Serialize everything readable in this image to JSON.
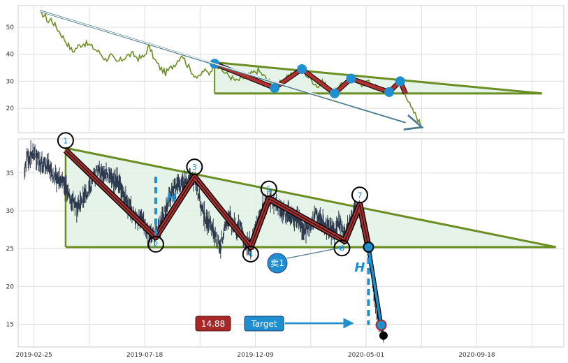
{
  "chart_data": [
    {
      "type": "line",
      "panel": "overview",
      "ylim": [
        11,
        58
      ],
      "y_ticks": [
        20,
        30,
        40,
        50
      ],
      "x_range": [
        0,
        100
      ],
      "colors": {
        "price": "#6b8e23",
        "pattern": "#b03030",
        "marker": "#1f8fcf",
        "fill": "#e2f2e6",
        "trend": "#4a7a8c"
      },
      "pattern_points": [
        [
          36,
          36.5
        ],
        [
          47,
          27.5
        ],
        [
          52,
          34.5
        ],
        [
          58,
          25.5
        ],
        [
          61,
          31
        ],
        [
          68,
          26
        ],
        [
          70,
          30
        ],
        [
          71,
          25.5
        ]
      ],
      "triangle": {
        "start_x": 36,
        "top_y": 37,
        "end_x": 96,
        "end_y": 25.5,
        "base_y": 25.5
      },
      "trend_arrow": {
        "from": [
          4,
          56
        ],
        "to": [
          74,
          13
        ]
      },
      "price_anchors": [
        [
          4,
          55.5
        ],
        [
          5,
          54
        ],
        [
          5.5,
          52
        ],
        [
          6,
          53
        ],
        [
          7,
          50
        ],
        [
          8,
          47
        ],
        [
          9,
          44
        ],
        [
          10,
          41
        ],
        [
          11,
          43
        ],
        [
          12,
          44
        ],
        [
          13,
          43.5
        ],
        [
          14,
          42
        ],
        [
          15,
          40.5
        ],
        [
          16,
          38
        ],
        [
          17,
          39.5
        ],
        [
          18,
          37
        ],
        [
          19,
          38
        ],
        [
          20,
          39.5
        ],
        [
          21,
          40
        ],
        [
          22,
          38.5
        ],
        [
          23,
          39
        ],
        [
          24,
          43
        ],
        [
          25,
          38
        ],
        [
          26,
          35
        ],
        [
          27,
          33
        ],
        [
          28,
          35
        ],
        [
          29,
          37
        ],
        [
          30,
          40
        ],
        [
          31,
          36
        ],
        [
          32,
          33
        ],
        [
          33,
          31
        ],
        [
          34,
          34
        ],
        [
          35,
          33
        ],
        [
          36,
          36.5
        ],
        [
          38,
          33
        ],
        [
          40,
          30
        ],
        [
          42,
          32
        ],
        [
          44,
          34
        ],
        [
          46,
          30
        ],
        [
          47,
          27.5
        ],
        [
          48,
          30
        ],
        [
          50,
          32
        ],
        [
          52,
          34.5
        ],
        [
          53,
          32
        ],
        [
          54,
          30
        ],
        [
          55,
          28
        ],
        [
          56,
          30
        ],
        [
          57,
          27
        ],
        [
          58,
          25.5
        ],
        [
          59,
          28
        ],
        [
          60,
          30
        ],
        [
          61,
          31
        ],
        [
          62,
          30
        ],
        [
          63,
          29
        ],
        [
          64,
          30
        ],
        [
          65,
          28
        ],
        [
          66,
          27.5
        ],
        [
          67,
          26.5
        ],
        [
          68,
          26
        ],
        [
          69,
          28
        ],
        [
          70,
          30
        ],
        [
          71,
          25.5
        ],
        [
          72,
          20
        ],
        [
          73,
          17
        ],
        [
          74,
          13
        ]
      ]
    },
    {
      "type": "line",
      "panel": "detail",
      "ylim": [
        12,
        39.5
      ],
      "y_ticks": [
        15,
        20,
        25,
        30,
        35
      ],
      "x_ticks": [
        {
          "label": "2019-02-25",
          "pos": 0
        },
        {
          "label": "2019-07-18",
          "pos": 140
        },
        {
          "label": "2019-12-09",
          "pos": 280
        },
        {
          "label": "2020-05-01",
          "pos": 420
        },
        {
          "label": "2020-09-18",
          "pos": 560
        }
      ],
      "x_range": [
        -20,
        670
      ],
      "colors": {
        "price": "#2e3a4e",
        "pattern": "#b03030",
        "trend": "#6b8e23",
        "marker": "#1f8fcf",
        "fill": "#e2f2e6",
        "target_box": "#1f8fcf",
        "price_box": "#a82828"
      },
      "pattern_points": [
        {
          "label": "1",
          "x": 40,
          "y": 38
        },
        {
          "label": "2",
          "x": 154,
          "y": 26.5
        },
        {
          "label": "3",
          "x": 203,
          "y": 34.5
        },
        {
          "label": "4",
          "x": 274,
          "y": 25.2
        },
        {
          "label": "5",
          "x": 297,
          "y": 31.6
        },
        {
          "label": "6",
          "x": 393,
          "y": 26
        },
        {
          "label": "7",
          "x": 412,
          "y": 30.8
        },
        {
          "label": "",
          "x": 423,
          "y": 25.2
        },
        {
          "label": "",
          "x": 439,
          "y": 14.9
        }
      ],
      "triangle": {
        "start_x": 40,
        "top_y": 38.3,
        "end_x": 660,
        "end_y": 25.2,
        "base_y": 25.2
      },
      "end_point": {
        "x": 442,
        "y": 13.5
      },
      "h_markers": [
        {
          "x": 154,
          "y_top": 34.5,
          "y_bottom": 26.5,
          "label": "H"
        },
        {
          "x": 423,
          "y_top": 25.2,
          "y_bottom": 14.9,
          "label": "H"
        }
      ],
      "annotations": {
        "sell": "卖1",
        "target": "Target",
        "target_price": "14.88"
      },
      "price_anchors": [
        [
          -12,
          34.5
        ],
        [
          -10,
          36
        ],
        [
          -8,
          37.5
        ],
        [
          -6,
          36.5
        ],
        [
          -4,
          37.8
        ],
        [
          -2,
          37
        ],
        [
          0,
          38
        ],
        [
          4,
          37
        ],
        [
          10,
          36
        ],
        [
          16,
          36.2
        ],
        [
          22,
          35
        ],
        [
          30,
          34
        ],
        [
          38,
          33.5
        ],
        [
          46,
          31.5
        ],
        [
          54,
          30.5
        ],
        [
          62,
          31.5
        ],
        [
          70,
          33
        ],
        [
          76,
          34.5
        ],
        [
          82,
          35.5
        ],
        [
          88,
          34.5
        ],
        [
          94,
          35
        ],
        [
          100,
          33.5
        ],
        [
          106,
          34
        ],
        [
          112,
          32.5
        ],
        [
          118,
          31
        ],
        [
          124,
          30
        ],
        [
          130,
          28.5
        ],
        [
          136,
          29
        ],
        [
          142,
          27.5
        ],
        [
          148,
          26.5
        ],
        [
          154,
          27
        ],
        [
          160,
          28
        ],
        [
          166,
          30
        ],
        [
          172,
          32
        ],
        [
          178,
          33
        ],
        [
          184,
          33.5
        ],
        [
          190,
          33.8
        ],
        [
          196,
          34.2
        ],
        [
          203,
          34
        ],
        [
          208,
          32.5
        ],
        [
          212,
          30.5
        ],
        [
          216,
          29
        ],
        [
          220,
          28.5
        ],
        [
          224,
          28
        ],
        [
          228,
          27
        ],
        [
          232,
          26
        ],
        [
          236,
          25.5
        ],
        [
          240,
          27
        ],
        [
          244,
          28.5
        ],
        [
          248,
          29
        ],
        [
          252,
          28
        ],
        [
          256,
          27.5
        ],
        [
          260,
          28
        ],
        [
          264,
          27
        ],
        [
          268,
          26
        ],
        [
          274,
          25.4
        ],
        [
          280,
          27.5
        ],
        [
          286,
          29.5
        ],
        [
          290,
          30.5
        ],
        [
          297,
          31.5
        ],
        [
          302,
          31
        ],
        [
          308,
          30.5
        ],
        [
          314,
          30
        ],
        [
          320,
          29.5
        ],
        [
          326,
          29.5
        ],
        [
          332,
          29
        ],
        [
          338,
          28
        ],
        [
          344,
          27.5
        ],
        [
          350,
          28
        ],
        [
          356,
          29.5
        ],
        [
          362,
          29
        ],
        [
          368,
          28
        ],
        [
          374,
          27.5
        ],
        [
          380,
          27
        ],
        [
          386,
          28.5
        ],
        [
          393,
          27
        ],
        [
          398,
          28
        ],
        [
          402,
          29
        ],
        [
          406,
          30
        ],
        [
          412,
          30.5
        ],
        [
          416,
          28.5
        ],
        [
          419,
          27
        ],
        [
          423,
          25.5
        ],
        [
          426,
          23
        ],
        [
          429,
          20
        ],
        [
          432,
          18
        ],
        [
          435,
          16
        ],
        [
          439,
          15
        ],
        [
          441,
          14
        ],
        [
          442,
          13.5
        ]
      ]
    }
  ]
}
